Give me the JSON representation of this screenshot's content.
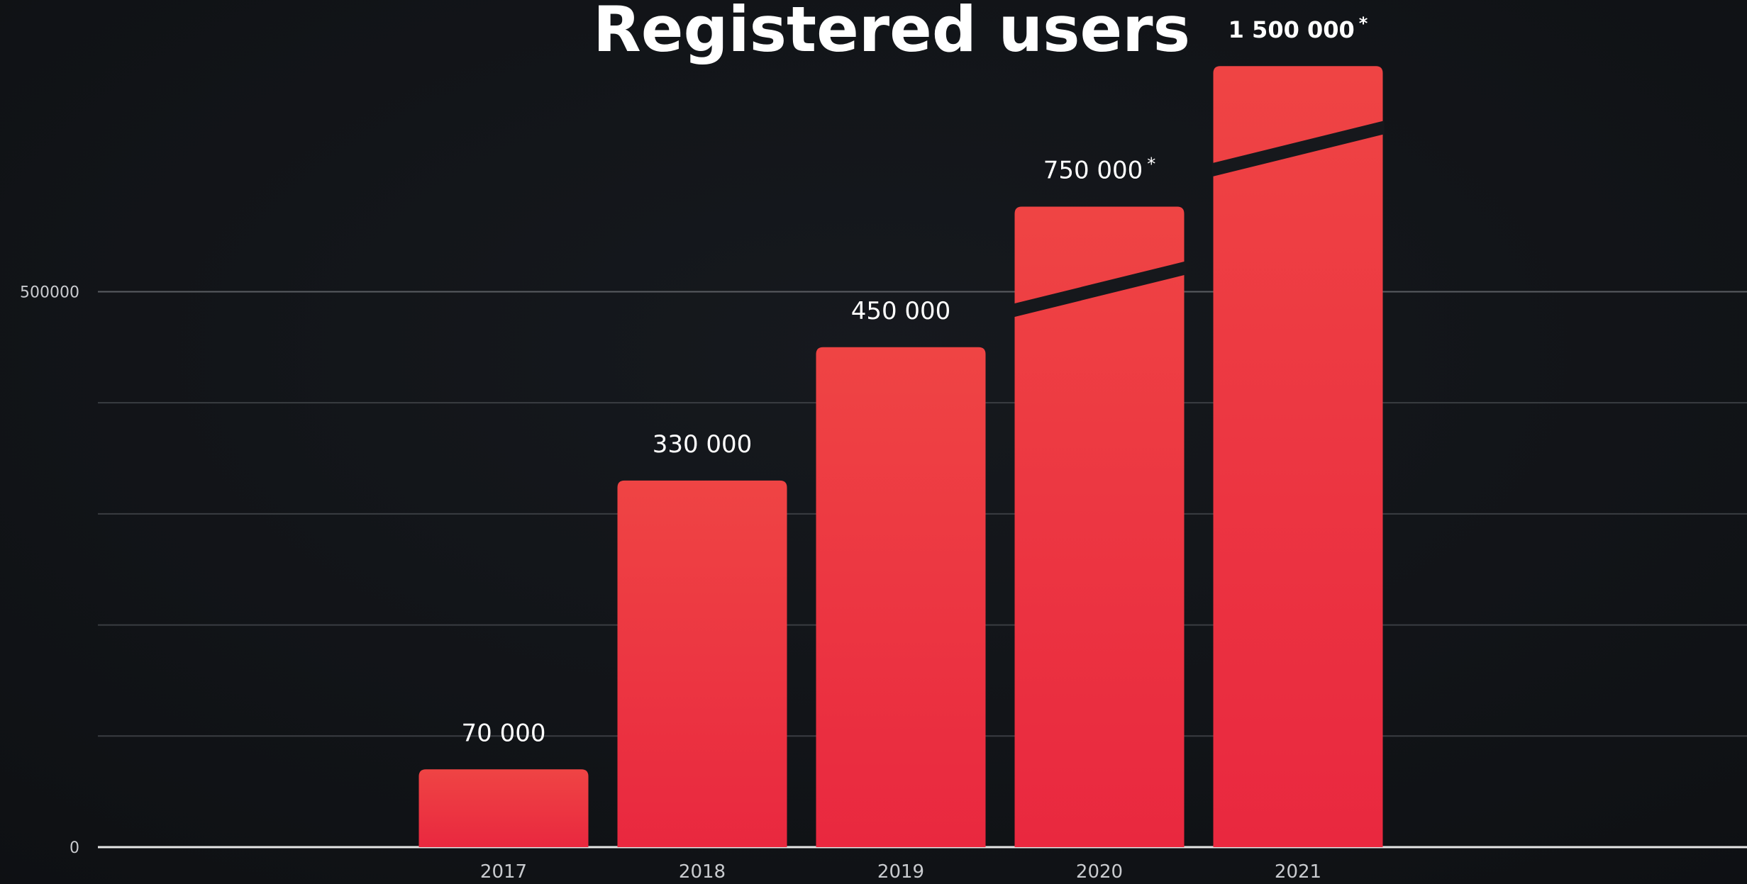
{
  "chart_data": {
    "type": "bar",
    "title": "Registered users",
    "categories": [
      "2017",
      "2018",
      "2019",
      "2020",
      "2021"
    ],
    "values": [
      70000,
      330000,
      450000,
      750000,
      1500000
    ],
    "value_labels": [
      "70 000",
      "330 000",
      "450 000",
      "750 000",
      "1 500 000"
    ],
    "broken": [
      false,
      false,
      false,
      true,
      true
    ],
    "broken_marker": "*",
    "colors": [
      "#ef4444",
      "#e9283f"
    ],
    "ylim": [
      0,
      760000
    ],
    "yticks": [
      0,
      500000
    ],
    "minor_yticks": [
      100000,
      200000,
      300000,
      400000
    ],
    "grid": true
  }
}
